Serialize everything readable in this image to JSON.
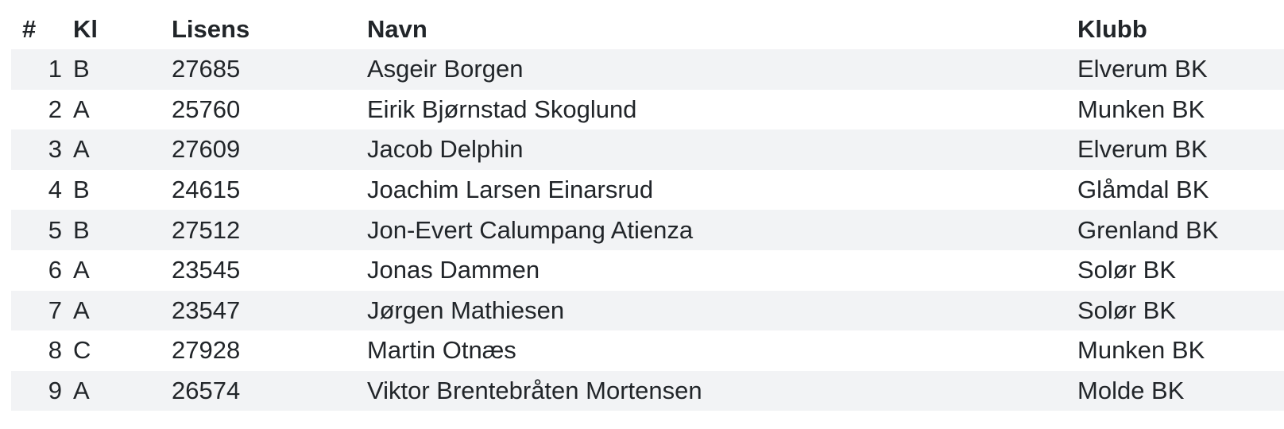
{
  "table": {
    "headers": {
      "num": "#",
      "kl": "Kl",
      "lisens": "Lisens",
      "navn": "Navn",
      "klubb": "Klubb"
    },
    "rows": [
      {
        "num": "1",
        "kl": "B",
        "lisens": "27685",
        "navn": "Asgeir Borgen",
        "klubb": "Elverum BK"
      },
      {
        "num": "2",
        "kl": "A",
        "lisens": "25760",
        "navn": "Eirik Bjørnstad Skoglund",
        "klubb": "Munken BK"
      },
      {
        "num": "3",
        "kl": "A",
        "lisens": "27609",
        "navn": "Jacob Delphin",
        "klubb": "Elverum BK"
      },
      {
        "num": "4",
        "kl": "B",
        "lisens": "24615",
        "navn": "Joachim Larsen Einarsrud",
        "klubb": "Glåmdal BK"
      },
      {
        "num": "5",
        "kl": "B",
        "lisens": "27512",
        "navn": "Jon-Evert Calumpang Atienza",
        "klubb": "Grenland BK"
      },
      {
        "num": "6",
        "kl": "A",
        "lisens": "23545",
        "navn": "Jonas Dammen",
        "klubb": "Solør BK"
      },
      {
        "num": "7",
        "kl": "A",
        "lisens": "23547",
        "navn": "Jørgen Mathiesen",
        "klubb": "Solør BK"
      },
      {
        "num": "8",
        "kl": "C",
        "lisens": "27928",
        "navn": "Martin Otnæs",
        "klubb": "Munken BK"
      },
      {
        "num": "9",
        "kl": "A",
        "lisens": "26574",
        "navn": "Viktor Brentebråten Mortensen",
        "klubb": "Molde BK"
      }
    ]
  },
  "colors": {
    "stripe": "#f2f3f5",
    "text": "#212529"
  }
}
